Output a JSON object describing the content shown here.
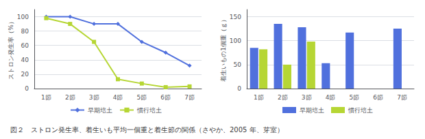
{
  "caption": "図２　ストロン発生率、着生いも平均一個重と着生節の関係（さやか、2005 年、芽室）",
  "chart_data": [
    {
      "type": "line",
      "categories": [
        "1節",
        "2節",
        "3節",
        "4節",
        "5節",
        "6節",
        "7節"
      ],
      "series": [
        {
          "name": "早期培土",
          "values": [
            100,
            100,
            90,
            90,
            65,
            50,
            32
          ],
          "marker": "diamond"
        },
        {
          "name": "慣行培土",
          "values": [
            98,
            90,
            65,
            13,
            7,
            2,
            3
          ],
          "marker": "square"
        }
      ],
      "ylabel": "ストロン発生率（%）",
      "ylim": [
        0,
        110
      ],
      "yticks": [
        0,
        20,
        40,
        60,
        80,
        100
      ],
      "grid": true,
      "legend": "bottom"
    },
    {
      "type": "bar",
      "categories": [
        "1節",
        "2節",
        "3節",
        "4節",
        "5節",
        "6節",
        "7節"
      ],
      "series": [
        {
          "name": "早期培土",
          "values": [
            85,
            135,
            128,
            53,
            117,
            0,
            125
          ]
        },
        {
          "name": "慣行培土",
          "values": [
            82,
            50,
            98,
            0,
            0,
            0,
            0
          ]
        }
      ],
      "ylabel": "着生いもの1個重（ｇ）",
      "ylim": [
        0,
        165
      ],
      "yticks": [
        0,
        50,
        100,
        150
      ],
      "grid": true,
      "legend": "bottom"
    }
  ]
}
